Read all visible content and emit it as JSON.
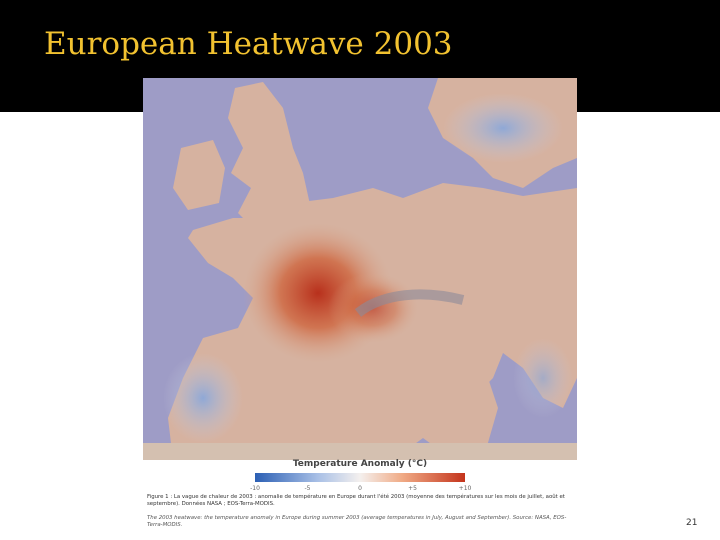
{
  "header": {
    "title": "European Heatwave 2003"
  },
  "figure": {
    "legend": {
      "title": "Temperature Anomaly (°C)",
      "ticks": [
        "-10",
        "-5",
        "0",
        "+5",
        "+10"
      ]
    },
    "caption_fr": "Figure 1 : La vague de chaleur de 2003 : anomalie de température en Europe durant l'été 2003 (moyenne des températures sur les mois de juillet, août et septembre). Données NASA ; EOS-Terra-MODIS.",
    "caption_en": "The 2003 heatwave: the temperature anomaly in Europe during summer 2003 (average temperatures in July, August and September). Source: NASA, EOS-Terra-MODIS."
  },
  "page_number": "21"
}
